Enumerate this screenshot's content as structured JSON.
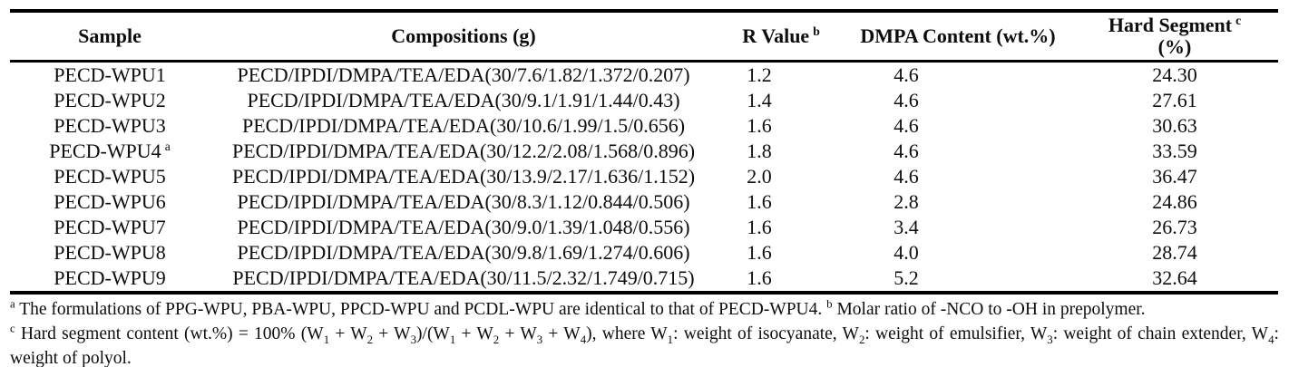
{
  "colors": {
    "text": "#000000",
    "background": "#ffffff",
    "rule": "#000000"
  },
  "table": {
    "columns": [
      {
        "label": "Sample",
        "sup": ""
      },
      {
        "label": "Compositions (g)",
        "sup": ""
      },
      {
        "label": "R Value",
        "sup": "b"
      },
      {
        "label": "DMPA Content (wt.%)",
        "sup": ""
      },
      {
        "label": "Hard Segment",
        "sup": "c",
        "unit_line": "(%)"
      }
    ],
    "rows": [
      {
        "sample": "PECD-WPU1",
        "sample_sup": "",
        "composition": "PECD/IPDI/DMPA/TEA/EDA(30/7.6/1.82/1.372/0.207)",
        "r_value": "1.2",
        "dmpa_content": "4.6",
        "hard_segment": "24.30"
      },
      {
        "sample": "PECD-WPU2",
        "sample_sup": "",
        "composition": "PECD/IPDI/DMPA/TEA/EDA(30/9.1/1.91/1.44/0.43)",
        "r_value": "1.4",
        "dmpa_content": "4.6",
        "hard_segment": "27.61"
      },
      {
        "sample": "PECD-WPU3",
        "sample_sup": "",
        "composition": "PECD/IPDI/DMPA/TEA/EDA(30/10.6/1.99/1.5/0.656)",
        "r_value": "1.6",
        "dmpa_content": "4.6",
        "hard_segment": "30.63"
      },
      {
        "sample": "PECD-WPU4",
        "sample_sup": "a",
        "composition": "PECD/IPDI/DMPA/TEA/EDA(30/12.2/2.08/1.568/0.896)",
        "r_value": "1.8",
        "dmpa_content": "4.6",
        "hard_segment": "33.59"
      },
      {
        "sample": "PECD-WPU5",
        "sample_sup": "",
        "composition": "PECD/IPDI/DMPA/TEA/EDA(30/13.9/2.17/1.636/1.152)",
        "r_value": "2.0",
        "dmpa_content": "4.6",
        "hard_segment": "36.47"
      },
      {
        "sample": "PECD-WPU6",
        "sample_sup": "",
        "composition": "PECD/IPDI/DMPA/TEA/EDA(30/8.3/1.12/0.844/0.506)",
        "r_value": "1.6",
        "dmpa_content": "2.8",
        "hard_segment": "24.86"
      },
      {
        "sample": "PECD-WPU7",
        "sample_sup": "",
        "composition": "PECD/IPDI/DMPA/TEA/EDA(30/9.0/1.39/1.048/0.556)",
        "r_value": "1.6",
        "dmpa_content": "3.4",
        "hard_segment": "26.73"
      },
      {
        "sample": "PECD-WPU8",
        "sample_sup": "",
        "composition": "PECD/IPDI/DMPA/TEA/EDA(30/9.8/1.69/1.274/0.606)",
        "r_value": "1.6",
        "dmpa_content": "4.0",
        "hard_segment": "28.74"
      },
      {
        "sample": "PECD-WPU9",
        "sample_sup": "",
        "composition": "PECD/IPDI/DMPA/TEA/EDA(30/11.5/2.32/1.749/0.715)",
        "r_value": "1.6",
        "dmpa_content": "5.2",
        "hard_segment": "32.64"
      }
    ]
  },
  "footnotes": {
    "line_ab": [
      {
        "t": "sup",
        "v": "a"
      },
      {
        "t": "text",
        "v": " The formulations of PPG-WPU, PBA-WPU, PPCD-WPU and PCDL-WPU are identical to that of PECD-WPU4. "
      },
      {
        "t": "sup",
        "v": "b"
      },
      {
        "t": "text",
        "v": " Molar ratio of -NCO to -OH in prepolymer."
      }
    ],
    "line_c": [
      {
        "t": "sup",
        "v": "c"
      },
      {
        "t": "text",
        "v": " Hard segment content (wt.%) = 100% (W"
      },
      {
        "t": "sub",
        "v": "1"
      },
      {
        "t": "text",
        "v": " + W"
      },
      {
        "t": "sub",
        "v": "2"
      },
      {
        "t": "text",
        "v": " + W"
      },
      {
        "t": "sub",
        "v": "3"
      },
      {
        "t": "text",
        "v": ")/(W"
      },
      {
        "t": "sub",
        "v": "1"
      },
      {
        "t": "text",
        "v": " + W"
      },
      {
        "t": "sub",
        "v": "2"
      },
      {
        "t": "text",
        "v": " + W"
      },
      {
        "t": "sub",
        "v": "3"
      },
      {
        "t": "text",
        "v": " + W"
      },
      {
        "t": "sub",
        "v": "4"
      },
      {
        "t": "text",
        "v": "), where W"
      },
      {
        "t": "sub",
        "v": "1"
      },
      {
        "t": "text",
        "v": ": weight of isocyanate, W"
      },
      {
        "t": "sub",
        "v": "2"
      },
      {
        "t": "text",
        "v": ": weight of emulsifier, W"
      },
      {
        "t": "sub",
        "v": "3"
      },
      {
        "t": "text",
        "v": ": weight of chain extender, W"
      },
      {
        "t": "sub",
        "v": "4"
      },
      {
        "t": "text",
        "v": ": weight of polyol."
      }
    ]
  }
}
